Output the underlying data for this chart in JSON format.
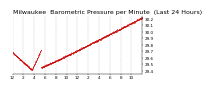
{
  "title": "Milwaukee  Barometric Pressure per Minute  (Last 24 Hours)",
  "bg_color": "#ffffff",
  "grid_color": "#aaaaaa",
  "line_color": "#cc0000",
  "y_min": 29.35,
  "y_max": 30.25,
  "y_ticks": [
    29.4,
    29.5,
    29.6,
    29.7,
    29.8,
    29.9,
    30.0,
    30.1,
    30.2
  ],
  "num_points": 1440,
  "title_fontsize": 4.5,
  "tick_fontsize": 3.0
}
